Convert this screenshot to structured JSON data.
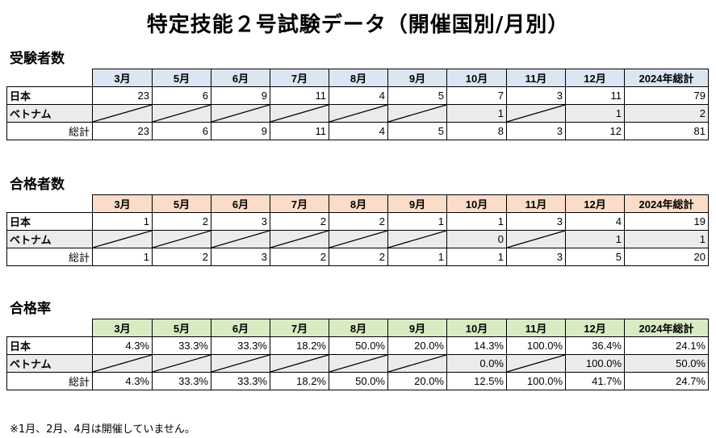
{
  "title": "特定技能２号試験データ（開催国別/月別）",
  "columns": [
    "3月",
    "5月",
    "6月",
    "7月",
    "8月",
    "9月",
    "10月",
    "11月",
    "12月",
    "2024年総計"
  ],
  "row_labels": {
    "japan": "日本",
    "vietnam": "ベトナム",
    "total": "総計"
  },
  "colors": {
    "examinees_header": "#dce6f2",
    "passers_header": "#fbdcc8",
    "rate_header": "#d8ecc4",
    "shaded_row": "#ebebeb"
  },
  "sections": [
    {
      "label": "受験者数",
      "japan": [
        "23",
        "6",
        "9",
        "11",
        "4",
        "5",
        "7",
        "3",
        "11",
        "79"
      ],
      "vietnam": [
        "",
        "",
        "",
        "",
        "",
        "",
        "1",
        "",
        "1",
        "2"
      ],
      "total": [
        "23",
        "6",
        "9",
        "11",
        "4",
        "5",
        "8",
        "3",
        "12",
        "81"
      ]
    },
    {
      "label": "合格者数",
      "japan": [
        "1",
        "2",
        "3",
        "2",
        "2",
        "1",
        "1",
        "3",
        "4",
        "19"
      ],
      "vietnam": [
        "",
        "",
        "",
        "",
        "",
        "",
        "0",
        "",
        "1",
        "1"
      ],
      "total": [
        "1",
        "2",
        "3",
        "2",
        "2",
        "1",
        "1",
        "3",
        "5",
        "20"
      ]
    },
    {
      "label": "合格率",
      "japan": [
        "4.3%",
        "33.3%",
        "33.3%",
        "18.2%",
        "50.0%",
        "20.0%",
        "14.3%",
        "100.0%",
        "36.4%",
        "24.1%"
      ],
      "vietnam": [
        "",
        "",
        "",
        "",
        "",
        "",
        "0.0%",
        "",
        "100.0%",
        "50.0%"
      ],
      "total": [
        "4.3%",
        "33.3%",
        "33.3%",
        "18.2%",
        "50.0%",
        "20.0%",
        "12.5%",
        "100.0%",
        "41.7%",
        "24.7%"
      ]
    }
  ],
  "note": "※1月、2月、4月は開催していません。"
}
